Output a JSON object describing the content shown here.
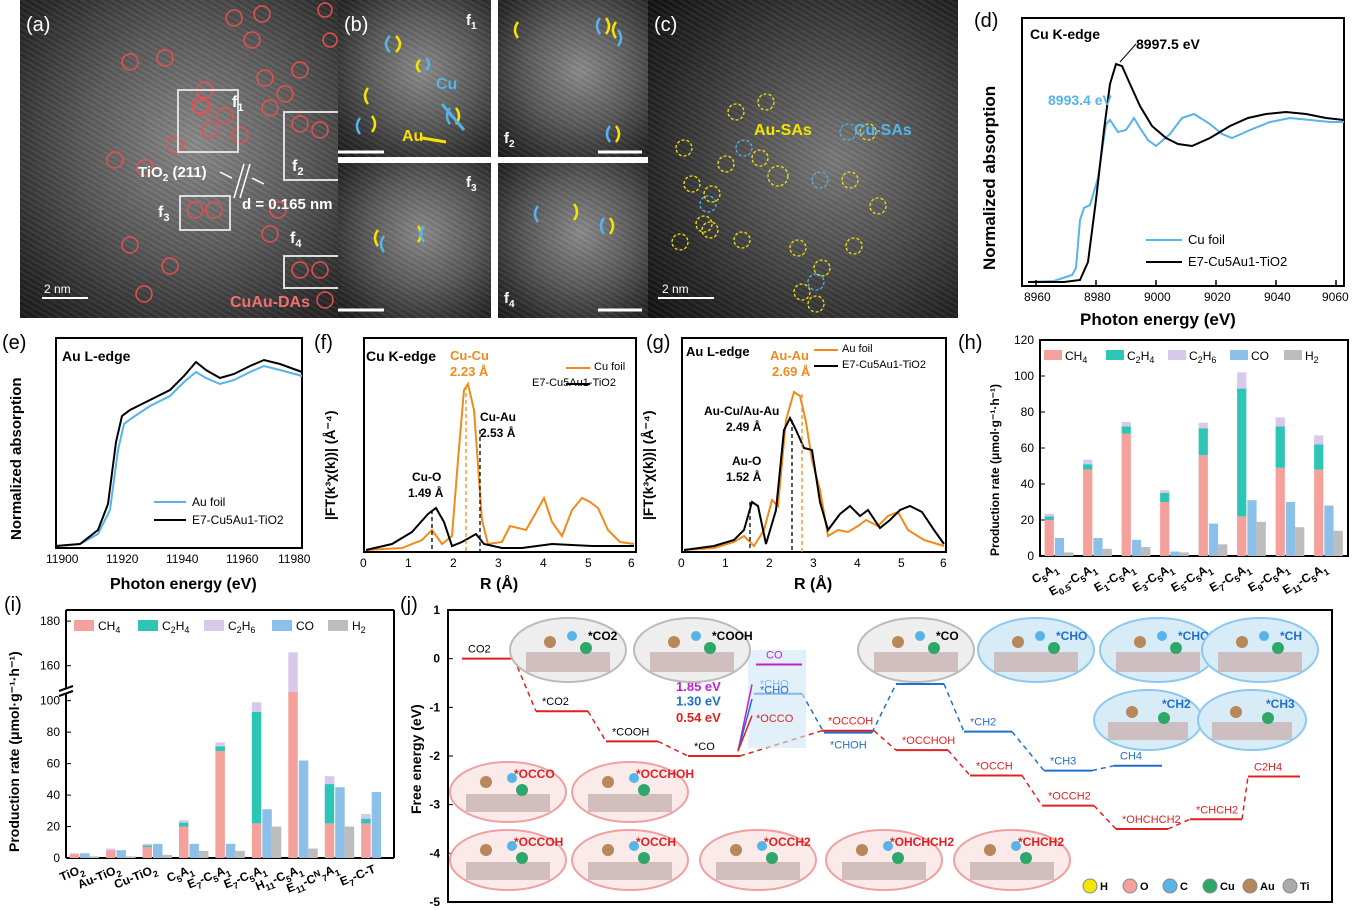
{
  "panels": {
    "a": {
      "label": "(a)",
      "scale": "2 nm",
      "f1": "f",
      "f1s": "1",
      "f2": "f",
      "f2s": "2",
      "f3": "f",
      "f3s": "3",
      "f4": "f",
      "f4s": "4",
      "tio2": "TiO",
      "tio2sub": "2",
      "tio2rest": " (211)",
      "dspacing": "d = 0.165 nm",
      "dual": "CuAu-DAs"
    },
    "b": {
      "label": "(b)",
      "f1": "f",
      "f1s": "1",
      "f2": "f",
      "f2s": "2",
      "f3": "f",
      "f3s": "3",
      "f4": "f",
      "f4s": "4",
      "cu": "Cu",
      "au": "Au"
    },
    "c": {
      "label": "(c)",
      "scale": "2 nm",
      "au_sas": "Au-SAs",
      "cu_sas": "Cu-SAs"
    },
    "d": {
      "label": "(d)",
      "edge": "Cu K-edge",
      "peak1": "8997.5 eV",
      "peak2": "8993.4 eV",
      "ylabel": "Normalized absorption",
      "xlabel": "Photon energy (eV)",
      "ticks": [
        "8960",
        "8980",
        "9000",
        "9020",
        "9040",
        "9060"
      ],
      "legend1": "Cu foil",
      "legend2": "E7-Cu5Au1-TiO2"
    },
    "e": {
      "label": "(e)",
      "edge": "Au L-edge",
      "ylabel": "Normalized absorption",
      "xlabel": "Photon energy (eV)",
      "ticks": [
        "11900",
        "11920",
        "11940",
        "11960",
        "11980"
      ],
      "legend1": "Au foil",
      "legend2": "E7-Cu5Au1-TiO2"
    },
    "f": {
      "label": "(f)",
      "edge": "Cu K-edge",
      "peakcc": "Cu-Cu",
      "peakccval": "2.23 Å",
      "peakco": "Cu-O",
      "peakcoval": "1.49 Å",
      "peakca": "Cu-Au",
      "peakcaval": "2.53 Å",
      "ylabel": "|FT(k³χ(k))| (Å⁻⁴)",
      "xlabel": "R (Å)",
      "ticks": [
        "0",
        "1",
        "2",
        "3",
        "4",
        "5",
        "6"
      ],
      "legend1": "Cu foil",
      "legend2": "E7-Cu5Au1-TiO2"
    },
    "g": {
      "label": "(g)",
      "edge": "Au L-edge",
      "peakaa": "Au-Au",
      "peakaaval": "2.69 Å",
      "peakac": "Au-Cu/Au-Au",
      "peakacval": "2.49 Å",
      "peakao": "Au-O",
      "peakaoval": "1.52 Å",
      "ylabel": "|FT(k³χ(k))| (Å⁻⁴)",
      "xlabel": "R (Å)",
      "ticks": [
        "0",
        "1",
        "2",
        "3",
        "4",
        "5",
        "6"
      ],
      "legend1": "Au foil",
      "legend2": "E7-Cu5Au1-TiO2"
    },
    "h": {
      "label": "(h)",
      "ylabel": "Production rate (μmol·g⁻¹·h⁻¹)"
    },
    "i": {
      "label": "(i)",
      "ylabel": "Production rate (μmol·g⁻¹·h⁻¹)"
    },
    "j": {
      "label": "(j)",
      "ylabel": "Free energy (eV)"
    }
  },
  "colors": {
    "ch4": "#f4a09b",
    "c2h4": "#2ec4b6",
    "c2h6": "#d7c8ec",
    "co": "#8cc0e8",
    "h2": "#bdbdbd",
    "cu": "#56b4e9",
    "au": "#f0a030",
    "red": "#e02020",
    "blue": "#1f6fd0"
  },
  "chart_data": [
    {
      "type": "bar",
      "panel": "h",
      "categories": [
        "C5A1",
        "E0.5-C5A1",
        "E1-C5A1",
        "E3-C5A1",
        "E5-C5A1",
        "E7-C5A1",
        "E9-C5A1",
        "E11-C5A1"
      ],
      "category_labels": [
        {
          "parts": [
            [
              "C",
              ""
            ],
            [
              "5",
              "sub"
            ],
            [
              "A",
              ""
            ],
            [
              "1",
              "sub"
            ]
          ]
        },
        {
          "parts": [
            [
              "E",
              ""
            ],
            [
              "0.5",
              "sub"
            ],
            [
              "-C",
              ""
            ],
            [
              "5",
              "sub"
            ],
            [
              "A",
              ""
            ],
            [
              "1",
              "sub"
            ]
          ]
        },
        {
          "parts": [
            [
              "E",
              ""
            ],
            [
              "1",
              "sub"
            ],
            [
              "-C",
              ""
            ],
            [
              "5",
              "sub"
            ],
            [
              "A",
              ""
            ],
            [
              "1",
              "sub"
            ]
          ]
        },
        {
          "parts": [
            [
              "E",
              ""
            ],
            [
              "3",
              "sub"
            ],
            [
              "-C",
              ""
            ],
            [
              "5",
              "sub"
            ],
            [
              "A",
              ""
            ],
            [
              "1",
              "sub"
            ]
          ]
        },
        {
          "parts": [
            [
              "E",
              ""
            ],
            [
              "5",
              "sub"
            ],
            [
              "-C",
              ""
            ],
            [
              "5",
              "sub"
            ],
            [
              "A",
              ""
            ],
            [
              "1",
              "sub"
            ]
          ]
        },
        {
          "parts": [
            [
              "E",
              ""
            ],
            [
              "7",
              "sub"
            ],
            [
              "-C",
              ""
            ],
            [
              "5",
              "sub"
            ],
            [
              "A",
              ""
            ],
            [
              "1",
              "sub"
            ]
          ]
        },
        {
          "parts": [
            [
              "E",
              ""
            ],
            [
              "9",
              "sub"
            ],
            [
              "-C",
              ""
            ],
            [
              "5",
              "sub"
            ],
            [
              "A",
              ""
            ],
            [
              "1",
              "sub"
            ]
          ]
        },
        {
          "parts": [
            [
              "E",
              ""
            ],
            [
              "11",
              "sub"
            ],
            [
              "-C",
              ""
            ],
            [
              "5",
              "sub"
            ],
            [
              "A",
              ""
            ],
            [
              "1",
              "sub"
            ]
          ]
        }
      ],
      "stack_series": [
        {
          "name": "CH4",
          "values": [
            20,
            48,
            68,
            30,
            56,
            22,
            49,
            48
          ]
        },
        {
          "name": "C2H4",
          "values": [
            2,
            3,
            4,
            5,
            15,
            71,
            23,
            14
          ]
        },
        {
          "name": "C2H6",
          "values": [
            1.5,
            2.5,
            2.5,
            1.5,
            3,
            9,
            5,
            5
          ]
        }
      ],
      "side_series": [
        {
          "name": "CO",
          "values": [
            10,
            10,
            9,
            2.5,
            18,
            31,
            30,
            28
          ]
        },
        {
          "name": "H2",
          "values": [
            2,
            4,
            5,
            2,
            6.5,
            19,
            16,
            14
          ]
        }
      ],
      "ylim": [
        0,
        120
      ],
      "yticks": [
        "0",
        "20",
        "40",
        "60",
        "80",
        "100",
        "120"
      ],
      "legend": [
        "CH4",
        "C2H4",
        "C2H6",
        "CO",
        "H2"
      ]
    },
    {
      "type": "bar",
      "panel": "i",
      "categories": [
        "TiO2",
        "Au-TiO2",
        "Cu-TiO2",
        "C5A1",
        "E7-C5A1",
        "E7-C5A1",
        "H11-C5A1",
        "E11-C7A1",
        "E7-C-T"
      ],
      "category_labels": [
        {
          "parts": [
            [
              "TiO",
              ""
            ],
            [
              "2",
              "sub"
            ]
          ]
        },
        {
          "parts": [
            [
              "Au-TiO",
              ""
            ],
            [
              "2",
              "sub"
            ]
          ]
        },
        {
          "parts": [
            [
              "Cu-TiO",
              ""
            ],
            [
              "2",
              "sub"
            ]
          ]
        },
        {
          "parts": [
            [
              "C",
              ""
            ],
            [
              "5",
              "sub"
            ],
            [
              "A",
              ""
            ],
            [
              "1",
              "sub"
            ]
          ]
        },
        {
          "parts": [
            [
              "E",
              ""
            ],
            [
              "7",
              "sub"
            ],
            [
              "-C",
              ""
            ],
            [
              "5",
              "sub"
            ],
            [
              "A",
              ""
            ],
            [
              "1",
              "sub"
            ]
          ]
        },
        {
          "parts": [
            [
              "E",
              ""
            ],
            [
              "7",
              "sub"
            ],
            [
              "-C",
              ""
            ],
            [
              "5",
              "sub"
            ],
            [
              "A",
              ""
            ],
            [
              "1",
              "sub"
            ]
          ]
        },
        {
          "parts": [
            [
              "H",
              ""
            ],
            [
              "11",
              "sub"
            ],
            [
              "-C",
              ""
            ],
            [
              "5",
              "sub"
            ],
            [
              "A",
              ""
            ],
            [
              "1",
              "sub"
            ]
          ]
        },
        {
          "parts": [
            [
              "E",
              ""
            ],
            [
              "11",
              "sub"
            ],
            [
              "-C",
              ""
            ],
            [
              "N",
              "sup"
            ],
            [
              "7",
              "sub"
            ],
            [
              "A",
              ""
            ],
            [
              "1",
              "sub"
            ]
          ]
        },
        {
          "parts": [
            [
              "E",
              ""
            ],
            [
              "7",
              "sub"
            ],
            [
              "-C-T",
              ""
            ]
          ]
        }
      ],
      "stack_series": [
        {
          "name": "CH4",
          "values": [
            2.5,
            5,
            7,
            20,
            68,
            22,
            136,
            22,
            22
          ]
        },
        {
          "name": "C2H4",
          "values": [
            0,
            0,
            1,
            2.5,
            3,
            71,
            6,
            25,
            3
          ]
        },
        {
          "name": "C2H6",
          "values": [
            0.5,
            1,
            1,
            1.5,
            2.5,
            6,
            24,
            5,
            3
          ]
        }
      ],
      "side_series": [
        {
          "name": "CO",
          "values": [
            3,
            5,
            9,
            9,
            9,
            31,
            62,
            45,
            42
          ]
        },
        {
          "name": "H2",
          "values": [
            1,
            1,
            2,
            4.5,
            4.5,
            20,
            6,
            20,
            0
          ]
        }
      ],
      "ylim": [
        0,
        185
      ],
      "break": [
        103,
        150
      ],
      "yticks": [
        "0",
        "20",
        "40",
        "60",
        "80",
        "100",
        "160",
        "180"
      ],
      "legend": [
        "CH4",
        "C2H4",
        "C2H6",
        "CO",
        "H2"
      ]
    },
    {
      "type": "line",
      "panel": "j",
      "title": "",
      "ylabel": "Free energy (eV)",
      "ylim": [
        -5,
        1
      ],
      "yticks": [
        "1",
        "0",
        "-1",
        "-2",
        "-3",
        "-4",
        "-5"
      ],
      "steps": [
        {
          "label": "CO2",
          "y": 0.0,
          "color": "red"
        },
        {
          "label": "*CO2",
          "y": -1.08,
          "color": "red"
        },
        {
          "label": "*COOH",
          "y": -1.7,
          "color": "red"
        },
        {
          "label": "*CO",
          "y": -2.0,
          "color": "red"
        },
        {
          "label": "*OCCOH",
          "y": -1.48,
          "color": "red"
        },
        {
          "label": "*OCCHOH",
          "y": -1.88,
          "color": "red"
        },
        {
          "label": "*OCCH",
          "y": -2.4,
          "color": "red"
        },
        {
          "label": "*OCCH2",
          "y": -3.02,
          "color": "red"
        },
        {
          "label": "*OHCHCH2",
          "y": -3.5,
          "color": "red"
        },
        {
          "label": "*CHCH2",
          "y": -3.3,
          "color": "red"
        },
        {
          "label": "C2H4",
          "y": -2.42,
          "color": "red"
        }
      ],
      "ch4_path": [
        {
          "label": "*CHO",
          "y": -0.72
        },
        {
          "label": "*CHOH",
          "y": -1.52
        },
        {
          "label": "*CH",
          "y": -0.52
        },
        {
          "label": "*CH2",
          "y": -1.5
        },
        {
          "label": "*CH3",
          "y": -2.3
        },
        {
          "label": "CH4",
          "y": -2.2
        }
      ],
      "barriers": [
        {
          "label": "1.85 eV",
          "color": "#c020d0"
        },
        {
          "label": "1.30 eV",
          "color": "#1f6fd0"
        },
        {
          "label": "0.54 eV",
          "color": "#e02020"
        }
      ],
      "co_label": "CO",
      "cho_label": "*CHO",
      "occo_label": "*OCCO",
      "intermediates_top": [
        "*CO2",
        "*COOH",
        "*CO",
        "*CHO",
        "*CHOH",
        "*CH",
        "*CH2",
        "*CH3"
      ],
      "intermediates_bottom": [
        "*OCCO",
        "*OCCHOH",
        "*OCCOH",
        "*OCCH",
        "*OCCH2",
        "*OHCHCH2",
        "*CHCH2"
      ],
      "legend_atoms": [
        "H",
        "O",
        "C",
        "Cu",
        "Au",
        "Ti"
      ]
    }
  ]
}
